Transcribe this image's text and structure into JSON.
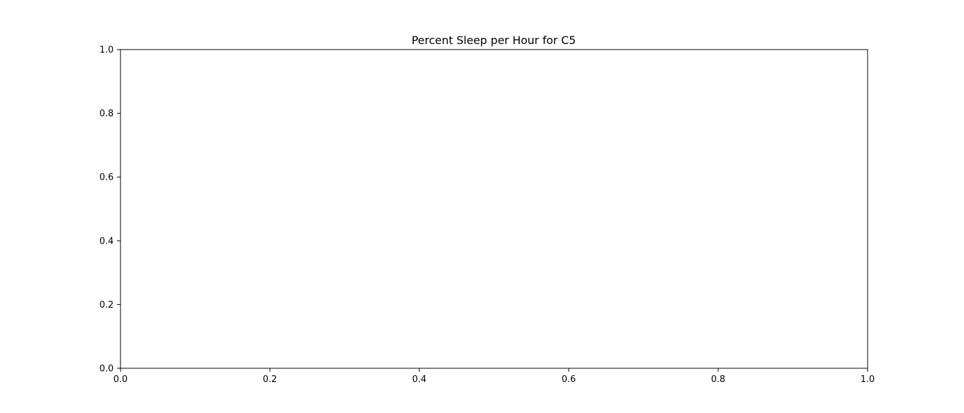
{
  "chart_data": {
    "type": "line",
    "title": "Percent Sleep per Hour for C5",
    "xlabel": "",
    "ylabel": "",
    "xlim": [
      0.0,
      1.0
    ],
    "ylim": [
      0.0,
      1.0
    ],
    "x_ticks": [
      "0.0",
      "0.2",
      "0.4",
      "0.6",
      "0.8",
      "1.0"
    ],
    "y_ticks": [
      "0.0",
      "0.2",
      "0.4",
      "0.6",
      "0.8",
      "1.0"
    ],
    "series": [],
    "grid": false,
    "legend": "none"
  }
}
